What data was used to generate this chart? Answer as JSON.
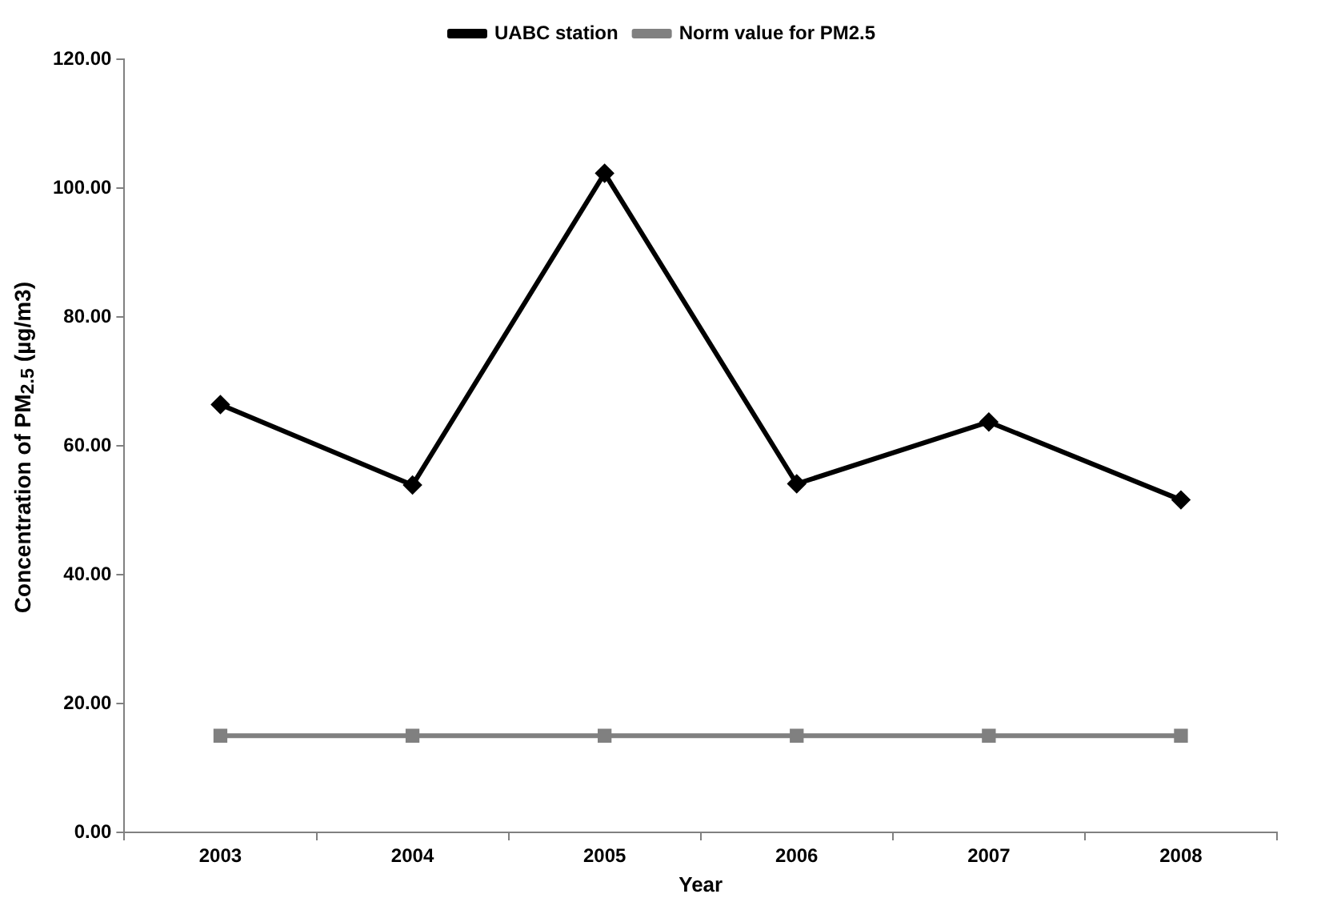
{
  "chart_data": {
    "type": "line",
    "xlabel": "Year",
    "ylabel": "Concentration of PM$_{2.5}$ (µg/m3)",
    "categories": [
      "2003",
      "2004",
      "2005",
      "2006",
      "2007",
      "2008"
    ],
    "series": [
      {
        "name": "UABC station",
        "color": "#000000",
        "marker": "diamond",
        "values": [
          66.4,
          53.9,
          102.3,
          54.1,
          63.7,
          51.6
        ]
      },
      {
        "name": "Norm value for PM2.5",
        "color": "#808080",
        "marker": "square",
        "values": [
          15,
          15,
          15,
          15,
          15,
          15
        ]
      }
    ],
    "ylim": [
      0,
      120
    ],
    "yticks": [
      {
        "value": 0,
        "label": "0.00"
      },
      {
        "value": 20,
        "label": "20.00"
      },
      {
        "value": 40,
        "label": "40.00"
      },
      {
        "value": 60,
        "label": "60.00"
      },
      {
        "value": 80,
        "label": "80.00"
      },
      {
        "value": 100,
        "label": "100.00"
      },
      {
        "value": 120,
        "label": "120.00"
      }
    ],
    "grid": false,
    "legend": "top",
    "line_style": "solid"
  }
}
